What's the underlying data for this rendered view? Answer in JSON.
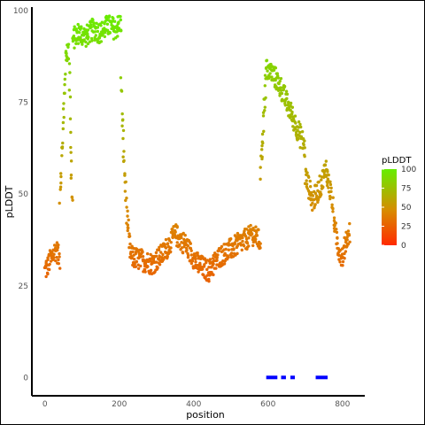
{
  "chart_data": {
    "type": "scatter",
    "title": "",
    "xlabel": "position",
    "ylabel": "pLDDT",
    "xlim": [
      -35,
      860
    ],
    "ylim": [
      -5,
      101
    ],
    "xticks": [
      0,
      200,
      400,
      600,
      800
    ],
    "yticks": [
      0,
      25,
      50,
      75,
      100
    ],
    "grid": false,
    "legend": {
      "title": "pLDDT",
      "placement": "right",
      "ticks": [
        0,
        25,
        50,
        75,
        100
      ],
      "colors": [
        "#ff2a00",
        "#d98a00",
        "#66ee00"
      ]
    },
    "segments": [
      {
        "x": [
          0,
          10,
          20,
          30,
          40
        ],
        "y": [
          29,
          31,
          33,
          35,
          32
        ]
      },
      {
        "x": [
          40,
          50,
          55,
          60,
          65,
          70,
          75
        ],
        "y": [
          50,
          70,
          85,
          90,
          88,
          60,
          45
        ]
      },
      {
        "x": [
          75,
          90,
          110,
          130,
          150,
          170,
          190,
          205
        ],
        "y": [
          92,
          94,
          93,
          95,
          94,
          96,
          95,
          97
        ]
      },
      {
        "x": [
          205,
          210,
          215,
          220,
          225,
          230
        ],
        "y": [
          80,
          65,
          55,
          45,
          38,
          34
        ]
      },
      {
        "x": [
          230,
          260,
          290,
          320,
          350,
          380,
          410,
          440,
          470,
          500,
          530,
          560,
          580
        ],
        "y": [
          33,
          32,
          31,
          34,
          39,
          36,
          31,
          29,
          33,
          35,
          37,
          39,
          37
        ]
      },
      {
        "x": [
          580,
          585,
          590,
          595
        ],
        "y": [
          55,
          65,
          75,
          82
        ]
      },
      {
        "x": [
          595,
          610,
          630,
          650,
          670,
          690,
          700
        ],
        "y": [
          84,
          83,
          80,
          75,
          70,
          65,
          62
        ]
      },
      {
        "x": [
          700,
          720,
          740,
          755,
          770,
          780,
          790,
          800,
          810,
          820
        ],
        "y": [
          55,
          48,
          52,
          57,
          50,
          40,
          35,
          33,
          37,
          40
        ]
      }
    ],
    "bars": [
      {
        "x0": 595,
        "x1": 625,
        "y": 0
      },
      {
        "x0": 635,
        "x1": 648,
        "y": 0
      },
      {
        "x0": 660,
        "x1": 672,
        "y": 0
      },
      {
        "x0": 728,
        "x1": 760,
        "y": 0
      }
    ],
    "bar_color": "#0000ff"
  }
}
